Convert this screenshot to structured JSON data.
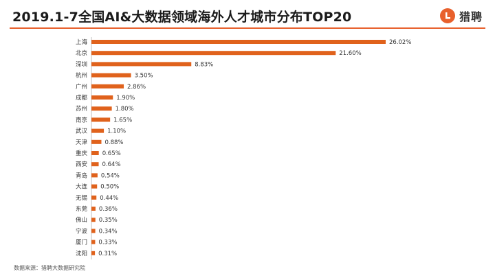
{
  "header": {
    "title": "2019.1-7全国AI&大数据领域海外人才城市分布TOP20",
    "logo_text": "猎聘",
    "logo_icon": "liepin-logo-icon",
    "accent_color": "#e8602c"
  },
  "footer": {
    "source": "数据来源：猎聘大数据研究院"
  },
  "chart_data": {
    "type": "bar",
    "orientation": "horizontal",
    "title": "2019.1-7全国AI&大数据领域海外人才城市分布TOP20",
    "categories": [
      "上海",
      "北京",
      "深圳",
      "杭州",
      "广州",
      "成都",
      "苏州",
      "南京",
      "武汉",
      "天津",
      "重庆",
      "西安",
      "青岛",
      "大连",
      "无锡",
      "东莞",
      "佛山",
      "宁波",
      "厦门",
      "沈阳"
    ],
    "values": [
      26.02,
      21.6,
      8.83,
      3.5,
      2.86,
      1.9,
      1.8,
      1.65,
      1.1,
      0.88,
      0.65,
      0.64,
      0.54,
      0.5,
      0.44,
      0.36,
      0.35,
      0.34,
      0.33,
      0.31
    ],
    "value_labels": [
      "26.02%",
      "21.60%",
      "8.83%",
      "3.50%",
      "2.86%",
      "1.90%",
      "1.80%",
      "1.65%",
      "1.10%",
      "0.88%",
      "0.65%",
      "0.64%",
      "0.54%",
      "0.50%",
      "0.44%",
      "0.36%",
      "0.35%",
      "0.34%",
      "0.33%",
      "0.31%"
    ],
    "unit": "%",
    "xlim": [
      0,
      26.02
    ],
    "bar_color": "#e0621c",
    "grid": false,
    "legend": "none"
  }
}
